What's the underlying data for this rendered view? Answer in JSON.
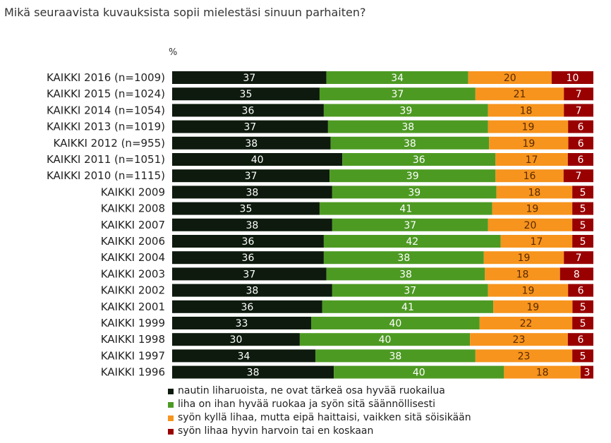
{
  "title": "Mikä seuraavista kuvauksista sopii mielestäsi sinuun parhaiten?",
  "unit": "%",
  "colors": [
    "#0d1a0d",
    "#4d9a23",
    "#f7941d",
    "#990000"
  ],
  "chart_data": {
    "type": "bar",
    "orientation": "horizontal",
    "stacked": true,
    "categories": [
      "KAIKKI 2016 (n=1009)",
      "KAIKKI 2015 (n=1024)",
      "KAIKKI 2014 (n=1054)",
      "KAIKKI 2013 (n=1019)",
      "KAIKKI 2012 (n=955)",
      "KAIKKI 2011 (n=1051)",
      "KAIKKI 2010 (n=1115)",
      "KAIKKI 2009",
      "KAIKKI 2008",
      "KAIKKI 2007",
      "KAIKKI 2006",
      "KAIKKI 2004",
      "KAIKKI 2003",
      "KAIKKI 2002",
      "KAIKKI 2001",
      "KAIKKI 1999",
      "KAIKKI 1998",
      "KAIKKI 1997",
      "KAIKKI 1996"
    ],
    "series": [
      {
        "name": "nautin liharuoista, ne ovat tärkeä osa hyvää ruokailua",
        "values": [
          37,
          35,
          36,
          37,
          38,
          40,
          37,
          38,
          35,
          38,
          36,
          36,
          37,
          38,
          36,
          33,
          30,
          34,
          38
        ]
      },
      {
        "name": "liha on ihan hyvää ruokaa ja syön sitä säännöllisesti",
        "values": [
          34,
          37,
          39,
          38,
          38,
          36,
          39,
          39,
          41,
          37,
          42,
          38,
          38,
          37,
          41,
          40,
          40,
          38,
          40
        ]
      },
      {
        "name": "syön kyllä lihaa, mutta eipä haittaisi, vaikken sitä söisikään",
        "values": [
          20,
          21,
          18,
          19,
          19,
          17,
          16,
          18,
          19,
          20,
          17,
          19,
          18,
          19,
          19,
          22,
          23,
          23,
          18
        ]
      },
      {
        "name": "syön lihaa hyvin harvoin tai en koskaan",
        "values": [
          10,
          7,
          7,
          6,
          6,
          6,
          7,
          5,
          5,
          5,
          5,
          7,
          8,
          6,
          5,
          5,
          6,
          5,
          3
        ]
      }
    ],
    "xlim": [
      0,
      100
    ],
    "grid": false,
    "legend_position": "bottom"
  }
}
